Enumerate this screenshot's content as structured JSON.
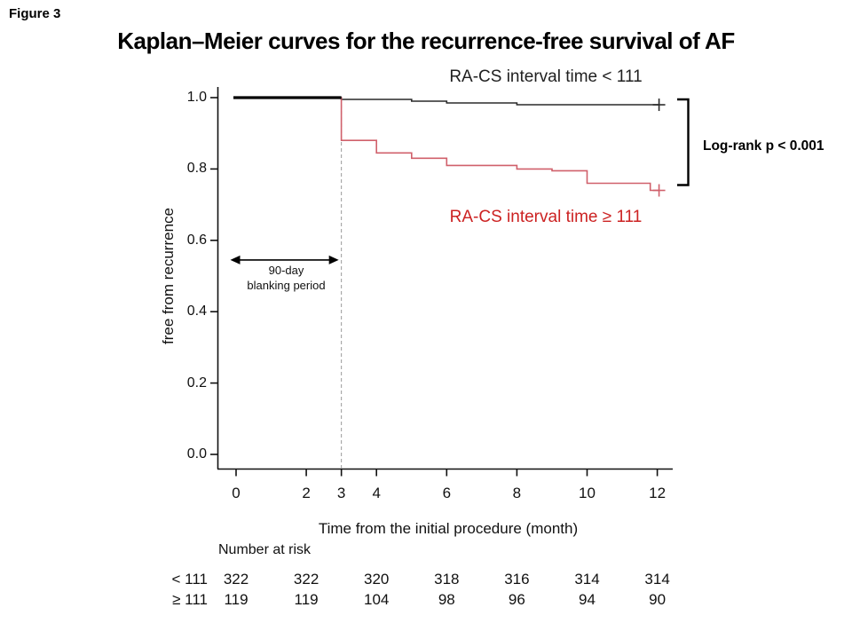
{
  "figure_label": "Figure 3",
  "title": "Kaplan–Meier curves for the recurrence-free survival of AF",
  "legend": {
    "black_label": "RA-CS interval time < 111",
    "red_label": "RA-CS interval time ≥ 111"
  },
  "annotations": {
    "logrank": "Log-rank p < 0.001",
    "blanking_line1": "90-day",
    "blanking_line2": "blanking period"
  },
  "axes": {
    "ylabel": "free from recurrence",
    "xlabel": "Time from the initial procedure (month)",
    "yticks": [
      "1.0",
      "0.8",
      "0.6",
      "0.4",
      "0.2",
      "0.0"
    ],
    "ytick_values": [
      1.0,
      0.8,
      0.6,
      0.4,
      0.2,
      0.0
    ],
    "xticks": [
      "0",
      "2",
      "3",
      "4",
      "6",
      "8",
      "10",
      "12"
    ],
    "xtick_values": [
      0,
      2,
      3,
      4,
      6,
      8,
      10,
      12
    ]
  },
  "risk_table": {
    "header": "Number at risk",
    "months": [
      0,
      2,
      4,
      6,
      8,
      10,
      12
    ],
    "rows": [
      {
        "label": "< 111",
        "values": [
          "322",
          "322",
          "320",
          "318",
          "316",
          "314",
          "314"
        ]
      },
      {
        "label": "≥ 111",
        "values": [
          "119",
          "119",
          "104",
          "98",
          "96",
          "94",
          "90"
        ]
      }
    ]
  },
  "colors": {
    "black_curve": "#2a2a2a",
    "black_overlap": "#000000",
    "red_curve": "#d0606b",
    "red_text": "#cc2222",
    "dashed_line": "#999999",
    "axis": "#111111"
  },
  "chart_data": {
    "type": "line",
    "subtype": "kaplan-meier-step",
    "title": "Kaplan–Meier curves for the recurrence-free survival of AF",
    "xlabel": "Time from the initial procedure (month)",
    "ylabel": "free from recurrence",
    "xlim": [
      0,
      12.4
    ],
    "ylim": [
      0.0,
      1.0
    ],
    "xticks": [
      0,
      2,
      3,
      4,
      6,
      8,
      10,
      12
    ],
    "yticks": [
      0.0,
      0.2,
      0.4,
      0.6,
      0.8,
      1.0
    ],
    "grid": false,
    "annotations": {
      "dashed_vertical_x": 3,
      "blanking_arrow": {
        "x_start": 0,
        "x_end": 3,
        "y": 0.545,
        "label": "90-day blanking period"
      },
      "logrank_bracket": {
        "label": "Log-rank p < 0.001",
        "y_top": 0.995,
        "y_bottom": 0.755
      }
    },
    "series": [
      {
        "name": "RA-CS interval time < 111",
        "color": "#2a2a2a",
        "steps": [
          [
            0,
            1.0
          ],
          [
            3,
            1.0
          ],
          [
            3,
            0.995
          ],
          [
            5,
            0.995
          ],
          [
            5,
            0.99
          ],
          [
            6,
            0.99
          ],
          [
            6,
            0.985
          ],
          [
            8,
            0.985
          ],
          [
            8,
            0.98
          ],
          [
            12.05,
            0.98
          ]
        ],
        "censor": [
          [
            12.05,
            0.98
          ]
        ],
        "number_at_risk": [
          322,
          322,
          320,
          318,
          316,
          314,
          314
        ]
      },
      {
        "name": "RA-CS interval time ≥ 111",
        "color": "#d0606b",
        "steps": [
          [
            0,
            1.0
          ],
          [
            3,
            1.0
          ],
          [
            3,
            0.88
          ],
          [
            4,
            0.88
          ],
          [
            4,
            0.845
          ],
          [
            5,
            0.845
          ],
          [
            5,
            0.83
          ],
          [
            6,
            0.83
          ],
          [
            6,
            0.81
          ],
          [
            8,
            0.81
          ],
          [
            8,
            0.8
          ],
          [
            9,
            0.8
          ],
          [
            9,
            0.795
          ],
          [
            10,
            0.795
          ],
          [
            10,
            0.76
          ],
          [
            11.8,
            0.76
          ],
          [
            11.8,
            0.74
          ],
          [
            12.05,
            0.74
          ]
        ],
        "censor": [
          [
            12.05,
            0.74
          ]
        ],
        "number_at_risk": [
          119,
          119,
          104,
          98,
          96,
          94,
          90
        ]
      }
    ]
  }
}
